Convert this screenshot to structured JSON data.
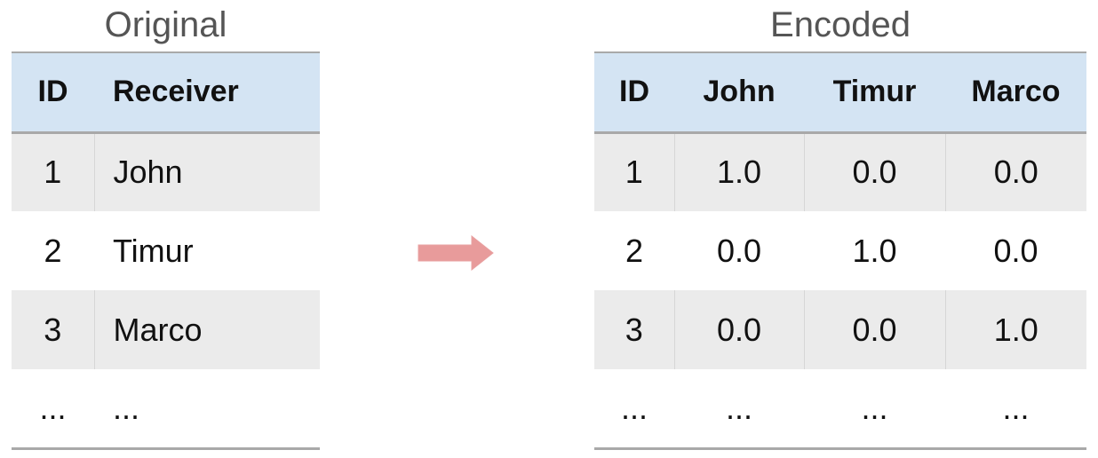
{
  "original": {
    "title": "Original",
    "headers": [
      "ID",
      "Receiver"
    ],
    "rows": [
      [
        "1",
        "John"
      ],
      [
        "2",
        "Timur"
      ],
      [
        "3",
        "Marco"
      ],
      [
        "...",
        "..."
      ]
    ]
  },
  "encoded": {
    "title": "Encoded",
    "headers": [
      "ID",
      "John",
      "Timur",
      "Marco"
    ],
    "rows": [
      [
        "1",
        "1.0",
        "0.0",
        "0.0"
      ],
      [
        "2",
        "0.0",
        "1.0",
        "0.0"
      ],
      [
        "3",
        "0.0",
        "0.0",
        "1.0"
      ],
      [
        "...",
        "...",
        "...",
        "..."
      ]
    ]
  },
  "colors": {
    "header_bg": "#d4e4f3",
    "shaded_row_bg": "#ebebeb",
    "arrow": "#e89b9b",
    "caption_text": "#555555"
  },
  "icons": {
    "transform_arrow": "right-arrow-icon"
  }
}
